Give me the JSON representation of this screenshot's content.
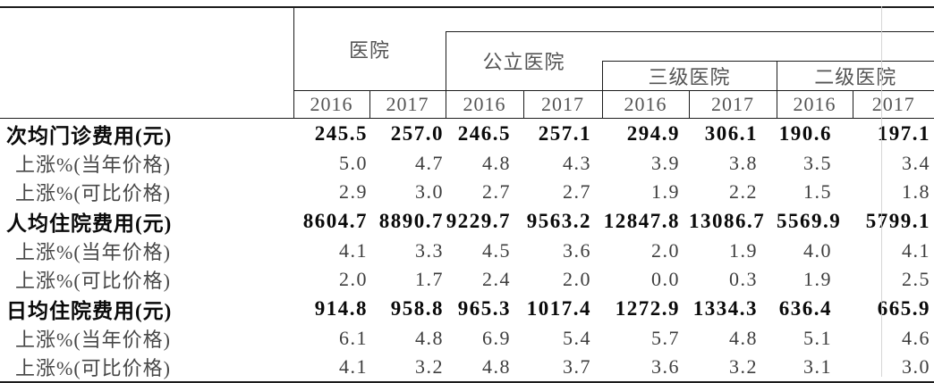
{
  "table": {
    "corner_label": "",
    "col_groups": [
      {
        "label": "医院",
        "years": [
          "2016",
          "2017"
        ]
      },
      {
        "label": "公立医院",
        "years": [
          "2016",
          "2017"
        ]
      },
      {
        "label": "三级医院",
        "years": [
          "2016",
          "2017"
        ]
      },
      {
        "label": "二级医院",
        "years": [
          "2016",
          "2017"
        ]
      }
    ],
    "rows": [
      {
        "label": "次均门诊费用(元)",
        "bold": true,
        "values": [
          "245.5",
          "257.0",
          "246.5",
          "257.1",
          "294.9",
          "306.1",
          "190.6",
          "197.1"
        ]
      },
      {
        "label": "上涨%(当年价格)",
        "bold": false,
        "values": [
          "5.0",
          "4.7",
          "4.8",
          "4.3",
          "3.9",
          "3.8",
          "3.5",
          "3.4"
        ]
      },
      {
        "label": "上涨%(可比价格)",
        "bold": false,
        "values": [
          "2.9",
          "3.0",
          "2.7",
          "2.7",
          "1.9",
          "2.2",
          "1.5",
          "1.8"
        ]
      },
      {
        "label": "人均住院费用(元)",
        "bold": true,
        "values": [
          "8604.7",
          "8890.7",
          "9229.7",
          "9563.2",
          "12847.8",
          "13086.7",
          "5569.9",
          "5799.1"
        ]
      },
      {
        "label": "上涨%(当年价格)",
        "bold": false,
        "values": [
          "4.1",
          "3.3",
          "4.5",
          "3.6",
          "2.0",
          "1.9",
          "4.0",
          "4.1"
        ]
      },
      {
        "label": "上涨%(可比价格)",
        "bold": false,
        "values": [
          "2.0",
          "1.7",
          "2.4",
          "2.0",
          "0.0",
          "0.3",
          "1.9",
          "2.5"
        ]
      },
      {
        "label": "日均住院费用(元)",
        "bold": true,
        "values": [
          "914.8",
          "958.8",
          "965.3",
          "1017.4",
          "1272.9",
          "1334.3",
          "636.4",
          "665.9"
        ]
      },
      {
        "label": "上涨%(当年价格)",
        "bold": false,
        "values": [
          "6.1",
          "4.8",
          "6.9",
          "5.4",
          "5.7",
          "4.8",
          "5.1",
          "4.6"
        ]
      },
      {
        "label": "上涨%(可比价格)",
        "bold": false,
        "values": [
          "4.1",
          "3.2",
          "4.8",
          "3.7",
          "3.6",
          "3.2",
          "3.1",
          "3.0"
        ]
      }
    ]
  }
}
